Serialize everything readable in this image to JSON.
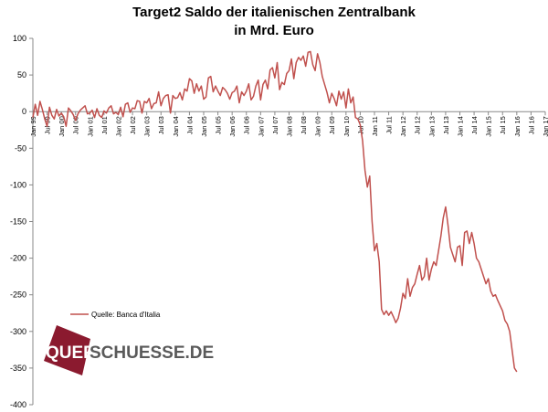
{
  "chart_data": {
    "type": "line",
    "title": "Target2 Saldo der italienischen Zentralbank",
    "subtitle": "in Mrd. Euro",
    "ylim": [
      -400,
      100
    ],
    "yticks": [
      100,
      50,
      0,
      -50,
      -100,
      -150,
      -200,
      -250,
      -300,
      -350,
      -400
    ],
    "xticks": [
      "Jan 99",
      "Jul 99",
      "Jan 00",
      "Jul 00",
      "Jan 01",
      "Jul 01",
      "Jan 02",
      "Jul 02",
      "Jan 03",
      "Jul 03",
      "Jan 04",
      "Jul 04",
      "Jan 05",
      "Jul 05",
      "Jan 06",
      "Jul 06",
      "Jan 07",
      "Jul 07",
      "Jan 08",
      "Jul 08",
      "Jan 09",
      "Jul 09",
      "Jan 10",
      "Jul 10",
      "Jan 11",
      "Jul 11",
      "Jan 12",
      "Jul 12",
      "Jan 13",
      "Jul 13",
      "Jan 14",
      "Jul 14",
      "Jan 15",
      "Jul 15",
      "Jan 16",
      "Jul 16",
      "Jan 17"
    ],
    "grid": false,
    "legend_position": "bottom-left",
    "line_color": "#c0504d",
    "series": [
      {
        "name": "Quelle: Banca d'Italia",
        "x_start": "Jan 99",
        "x_step": "month",
        "values": [
          -8,
          10,
          -5,
          14,
          3,
          -10,
          -20,
          6,
          -5,
          -10,
          3,
          -6,
          -2,
          -7,
          -20,
          5,
          1,
          -4,
          -12,
          -3,
          2,
          5,
          8,
          -3,
          -2,
          2,
          -8,
          4,
          -5,
          -8,
          1,
          -2,
          5,
          8,
          -3,
          -1,
          -4,
          6,
          -7,
          10,
          12,
          -1,
          5,
          4,
          15,
          14,
          -2,
          14,
          12,
          18,
          4,
          11,
          12,
          27,
          8,
          18,
          22,
          23,
          -2,
          22,
          18,
          19,
          26,
          16,
          31,
          28,
          45,
          42,
          25,
          38,
          28,
          35,
          17,
          20,
          46,
          48,
          27,
          35,
          28,
          22,
          33,
          30,
          25,
          17,
          26,
          28,
          35,
          12,
          27,
          22,
          28,
          38,
          16,
          21,
          35,
          43,
          16,
          37,
          43,
          31,
          57,
          60,
          46,
          67,
          30,
          40,
          37,
          52,
          56,
          72,
          45,
          67,
          74,
          70,
          76,
          62,
          81,
          82,
          64,
          56,
          79,
          67,
          48,
          37,
          26,
          12,
          25,
          18,
          8,
          28,
          17,
          27,
          5,
          31,
          12,
          20,
          -8,
          -10,
          -18,
          -40,
          -80,
          -103,
          -88,
          -150,
          -190,
          -180,
          -205,
          -270,
          -277,
          -272,
          -278,
          -273,
          -280,
          -288,
          -282,
          -268,
          -248,
          -255,
          -228,
          -252,
          -240,
          -235,
          -222,
          -210,
          -230,
          -225,
          -200,
          -230,
          -215,
          -205,
          -210,
          -190,
          -170,
          -145,
          -130,
          -155,
          -185,
          -195,
          -205,
          -185,
          -183,
          -210,
          -165,
          -163,
          -180,
          -165,
          -180,
          -200,
          -205,
          -215,
          -225,
          -235,
          -228,
          -245,
          -252,
          -250,
          -258,
          -265,
          -272,
          -285,
          -290,
          -300,
          -325,
          -350,
          -355
        ]
      }
    ]
  },
  "watermark": {
    "part1": "QUER",
    "part2": "SCHUESSE.DE",
    "box_color": "#8b1a2f",
    "text_color": "#5a5a5a"
  }
}
